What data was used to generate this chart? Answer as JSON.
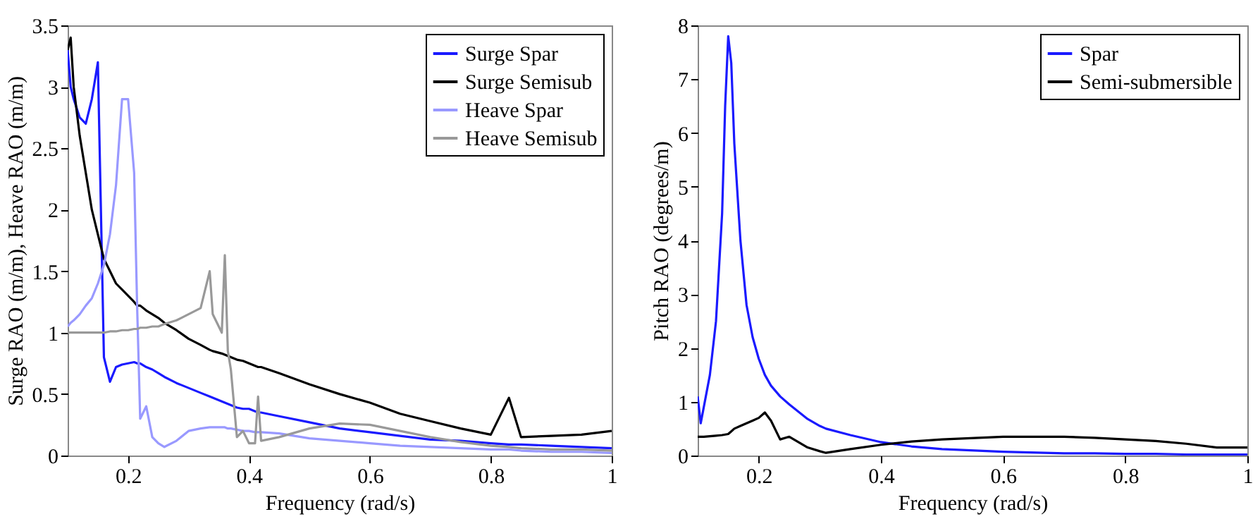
{
  "chart_data": [
    {
      "type": "line",
      "xlabel": "Frequency (rad/s)",
      "ylabel": "Surge RAO (m/m), Heave RAO (m/m)",
      "xlim": [
        0.1,
        1
      ],
      "ylim": [
        0,
        3.5
      ],
      "xticks": [
        0.2,
        0.4,
        0.6,
        0.8,
        1
      ],
      "yticks": [
        0,
        0.5,
        1,
        1.5,
        2,
        2.5,
        3,
        3.5
      ],
      "grid": false,
      "legend": "top right",
      "marker": "none",
      "x": [
        0.1,
        0.105,
        0.11,
        0.12,
        0.13,
        0.14,
        0.15,
        0.16,
        0.17,
        0.18,
        0.19,
        0.2,
        0.21,
        0.215,
        0.22,
        0.23,
        0.24,
        0.25,
        0.26,
        0.28,
        0.3,
        0.32,
        0.335,
        0.34,
        0.355,
        0.36,
        0.365,
        0.37,
        0.38,
        0.39,
        0.4,
        0.41,
        0.415,
        0.42,
        0.45,
        0.5,
        0.55,
        0.6,
        0.65,
        0.7,
        0.75,
        0.8,
        0.83,
        0.85,
        0.9,
        0.95,
        1
      ],
      "series": [
        {
          "name": "Surge Spar",
          "color": "#1a1aff",
          "values": [
            3.3,
            3.0,
            2.9,
            2.75,
            2.7,
            2.9,
            3.2,
            0.8,
            0.6,
            0.72,
            0.74,
            0.75,
            0.76,
            0.75,
            0.75,
            0.72,
            0.7,
            0.67,
            0.64,
            0.59,
            0.55,
            0.51,
            0.48,
            0.47,
            0.44,
            0.43,
            0.42,
            0.41,
            0.39,
            0.38,
            0.38,
            0.36,
            0.35,
            0.35,
            0.32,
            0.27,
            0.22,
            0.19,
            0.16,
            0.13,
            0.12,
            0.1,
            0.09,
            0.09,
            0.08,
            0.07,
            0.06
          ]
        },
        {
          "name": "Surge Semisub",
          "color": "#000000",
          "values": [
            3.3,
            3.4,
            3.0,
            2.6,
            2.3,
            2.0,
            1.8,
            1.6,
            1.5,
            1.4,
            1.35,
            1.3,
            1.25,
            1.22,
            1.22,
            1.18,
            1.15,
            1.12,
            1.08,
            1.02,
            0.95,
            0.9,
            0.86,
            0.85,
            0.83,
            0.82,
            0.81,
            0.8,
            0.78,
            0.77,
            0.75,
            0.73,
            0.72,
            0.72,
            0.67,
            0.58,
            0.5,
            0.43,
            0.34,
            0.28,
            0.22,
            0.17,
            0.47,
            0.15,
            0.16,
            0.17,
            0.2
          ]
        },
        {
          "name": "Heave Spar",
          "color": "#9999ff",
          "values": [
            1.05,
            1.08,
            1.1,
            1.15,
            1.22,
            1.28,
            1.4,
            1.55,
            1.8,
            2.2,
            2.9,
            2.9,
            2.3,
            1.2,
            0.3,
            0.4,
            0.15,
            0.1,
            0.07,
            0.12,
            0.2,
            0.22,
            0.23,
            0.23,
            0.23,
            0.23,
            0.22,
            0.22,
            0.21,
            0.2,
            0.2,
            0.19,
            0.19,
            0.19,
            0.18,
            0.14,
            0.12,
            0.1,
            0.08,
            0.07,
            0.06,
            0.05,
            0.05,
            0.04,
            0.03,
            0.03,
            0.02
          ]
        },
        {
          "name": "Heave Semisub",
          "color": "#999999",
          "values": [
            1.0,
            1.0,
            1.0,
            1.0,
            1.0,
            1.0,
            1.0,
            1.0,
            1.01,
            1.01,
            1.02,
            1.02,
            1.03,
            1.03,
            1.04,
            1.04,
            1.05,
            1.05,
            1.07,
            1.1,
            1.15,
            1.2,
            1.5,
            1.15,
            1.0,
            1.63,
            0.85,
            0.7,
            0.15,
            0.2,
            0.1,
            0.1,
            0.48,
            0.12,
            0.15,
            0.22,
            0.26,
            0.25,
            0.2,
            0.15,
            0.11,
            0.08,
            0.07,
            0.06,
            0.05,
            0.05,
            0.04
          ]
        }
      ]
    },
    {
      "type": "line",
      "xlabel": "Frequency (rad/s)",
      "ylabel": "Pitch RAO (degrees/m)",
      "xlim": [
        0.1,
        1
      ],
      "ylim": [
        0,
        8
      ],
      "xticks": [
        0.2,
        0.4,
        0.6,
        0.8,
        1
      ],
      "yticks": [
        0,
        1,
        2,
        3,
        4,
        5,
        6,
        7,
        8
      ],
      "grid": false,
      "legend": "top right",
      "marker": "none",
      "x": [
        0.1,
        0.105,
        0.11,
        0.12,
        0.13,
        0.14,
        0.145,
        0.15,
        0.155,
        0.16,
        0.17,
        0.18,
        0.19,
        0.2,
        0.21,
        0.22,
        0.235,
        0.25,
        0.28,
        0.3,
        0.31,
        0.35,
        0.4,
        0.45,
        0.5,
        0.6,
        0.7,
        0.75,
        0.8,
        0.85,
        0.9,
        0.95,
        1
      ],
      "series": [
        {
          "name": "Spar",
          "color": "#1a1aff",
          "values": [
            1.1,
            0.6,
            0.9,
            1.5,
            2.5,
            4.5,
            6.5,
            7.8,
            7.3,
            5.8,
            4.0,
            2.8,
            2.2,
            1.8,
            1.5,
            1.3,
            1.1,
            0.95,
            0.68,
            0.55,
            0.5,
            0.38,
            0.25,
            0.17,
            0.12,
            0.07,
            0.04,
            0.04,
            0.03,
            0.03,
            0.02,
            0.02,
            0.02
          ]
        },
        {
          "name": "Semi-submersible",
          "color": "#000000",
          "values": [
            0.35,
            0.35,
            0.35,
            0.36,
            0.37,
            0.38,
            0.39,
            0.4,
            0.45,
            0.5,
            0.55,
            0.6,
            0.65,
            0.7,
            0.8,
            0.65,
            0.3,
            0.35,
            0.15,
            0.08,
            0.05,
            0.12,
            0.2,
            0.26,
            0.3,
            0.35,
            0.35,
            0.33,
            0.3,
            0.27,
            0.22,
            0.15,
            0.15
          ]
        }
      ]
    }
  ]
}
